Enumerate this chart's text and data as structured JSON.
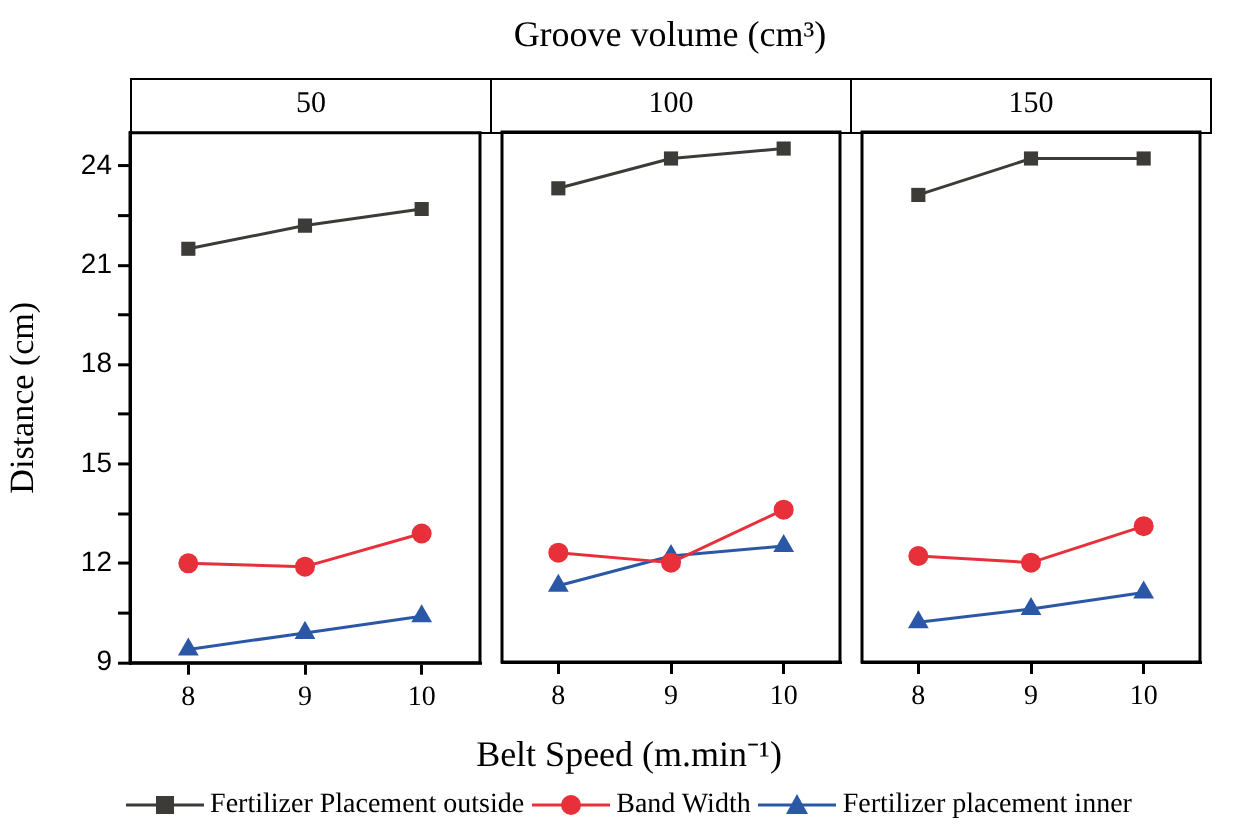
{
  "chart_data": [
    {
      "type": "line",
      "title": "50",
      "ylabel": "Distance (cm)",
      "annotations": [
        "Groove volume (cm³)"
      ],
      "legend": "bottom",
      "x": [
        8,
        9,
        10
      ],
      "xlim": [
        7.5,
        10.5
      ],
      "xticks": [
        8,
        9,
        10
      ],
      "ylim": [
        9,
        25
      ],
      "yticks": [
        9,
        {
          "value": 10.5,
          "label": null
        },
        12,
        {
          "value": 13.5,
          "label": null
        },
        15,
        {
          "value": 16.5,
          "label": null
        },
        18,
        {
          "value": 19.5,
          "label": null
        },
        21,
        {
          "value": 22.5,
          "label": null
        },
        24
      ],
      "grid": false,
      "line_style": "solid",
      "series": [
        {
          "name": "Fertilizer Placement outside",
          "color": "#3c3b38",
          "marker": "square",
          "values": [
            21.5,
            22.2,
            22.7
          ]
        },
        {
          "name": "Band Width",
          "color": "#e8303a",
          "marker": "circle",
          "values": [
            12.0,
            11.9,
            12.9
          ]
        },
        {
          "name": "Fertilizer placement inner",
          "color": "#2b58a6",
          "marker": "triangle",
          "values": [
            9.4,
            9.9,
            10.4
          ]
        }
      ]
    },
    {
      "type": "line",
      "title": "100",
      "xlabel": "Belt Speed (m.min⁻¹)",
      "tick_labels": "x",
      "x": [
        8,
        9,
        10
      ],
      "xlim": [
        7.5,
        10.5
      ],
      "xticks": [
        8,
        9,
        10
      ],
      "ylim": [
        9,
        25
      ],
      "grid": false,
      "line_style": "solid",
      "series": [
        {
          "color": "#3c3b38",
          "marker": "square",
          "values": [
            23.3,
            24.2,
            24.5
          ]
        },
        {
          "color": "#e8303a",
          "marker": "circle",
          "values": [
            12.3,
            12.0,
            13.6
          ]
        },
        {
          "color": "#2b58a6",
          "marker": "triangle",
          "values": [
            11.3,
            12.2,
            12.5
          ]
        }
      ]
    },
    {
      "type": "line",
      "title": "150",
      "tick_labels": "x",
      "x": [
        8,
        9,
        10
      ],
      "xlim": [
        7.5,
        10.5
      ],
      "xticks": [
        8,
        9,
        10
      ],
      "ylim": [
        9,
        25
      ],
      "grid": false,
      "line_style": "solid",
      "series": [
        {
          "color": "#3c3b38",
          "marker": "square",
          "values": [
            23.1,
            24.2,
            24.2
          ]
        },
        {
          "color": "#e8303a",
          "marker": "circle",
          "values": [
            12.2,
            12.0,
            13.1
          ]
        },
        {
          "color": "#2b58a6",
          "marker": "triangle",
          "values": [
            10.2,
            10.6,
            11.1
          ]
        }
      ]
    }
  ]
}
